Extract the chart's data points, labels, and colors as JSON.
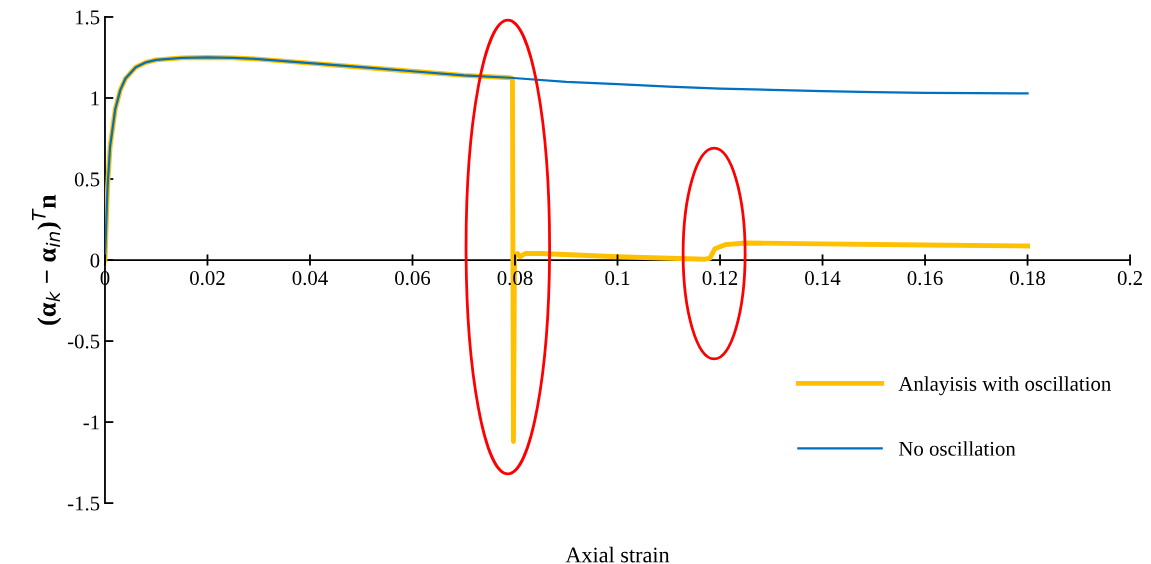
{
  "chart_data": {
    "type": "line",
    "xlabel": "Axial strain",
    "ylabel": "(α$_{k}$ − α$_{in}$)$^{T}$n",
    "xlim": [
      0,
      0.2
    ],
    "xticks": [
      0,
      0.02,
      0.04,
      0.06,
      0.08,
      0.1,
      0.12,
      0.14,
      0.16,
      0.18,
      0.2
    ],
    "ylim": [
      -1.5,
      1.5
    ],
    "yticks": [
      {
        "value": -1.5,
        "label": "-1.5"
      },
      {
        "value": -1,
        "label": "-1"
      },
      {
        "value": -0.5,
        "label": "-0.5"
      },
      0,
      0.5,
      1,
      1.5
    ],
    "grid": false,
    "legend": "bottom right",
    "marker": "none",
    "line_style": "solid",
    "series": [
      {
        "name": "Anlayisis with oscillation",
        "color": "#ffc000",
        "x": [
          0,
          0.0005,
          0.001,
          0.002,
          0.003,
          0.004,
          0.006,
          0.008,
          0.01,
          0.015,
          0.02,
          0.025,
          0.03,
          0.04,
          0.05,
          0.06,
          0.07,
          0.079,
          0.0795,
          0.0797,
          0.0799,
          0.0805,
          0.081,
          0.082,
          0.085,
          0.1,
          0.117,
          0.118,
          0.119,
          0.121,
          0.125,
          0.14,
          0.16,
          0.18
        ],
        "values": [
          0,
          0.45,
          0.7,
          0.93,
          1.05,
          1.12,
          1.19,
          1.22,
          1.235,
          1.248,
          1.25,
          1.248,
          1.24,
          1.215,
          1.19,
          1.165,
          1.14,
          1.125,
          1.12,
          -1.12,
          0.02,
          0.04,
          0.02,
          0.04,
          0.04,
          0.02,
          0.005,
          0.01,
          0.07,
          0.095,
          0.105,
          0.1,
          0.093,
          0.087
        ]
      },
      {
        "name": "No oscillation",
        "color": "#0070c0",
        "x": [
          0,
          0.0005,
          0.001,
          0.002,
          0.003,
          0.004,
          0.006,
          0.008,
          0.01,
          0.015,
          0.02,
          0.025,
          0.03,
          0.04,
          0.05,
          0.06,
          0.07,
          0.079,
          0.09,
          0.1,
          0.11,
          0.12,
          0.13,
          0.14,
          0.15,
          0.16,
          0.17,
          0.18
        ],
        "values": [
          0,
          0.45,
          0.7,
          0.93,
          1.05,
          1.12,
          1.19,
          1.22,
          1.235,
          1.248,
          1.25,
          1.248,
          1.24,
          1.215,
          1.19,
          1.165,
          1.14,
          1.125,
          1.1,
          1.085,
          1.07,
          1.058,
          1.05,
          1.042,
          1.036,
          1.032,
          1.03,
          1.028
        ]
      }
    ]
  }
}
